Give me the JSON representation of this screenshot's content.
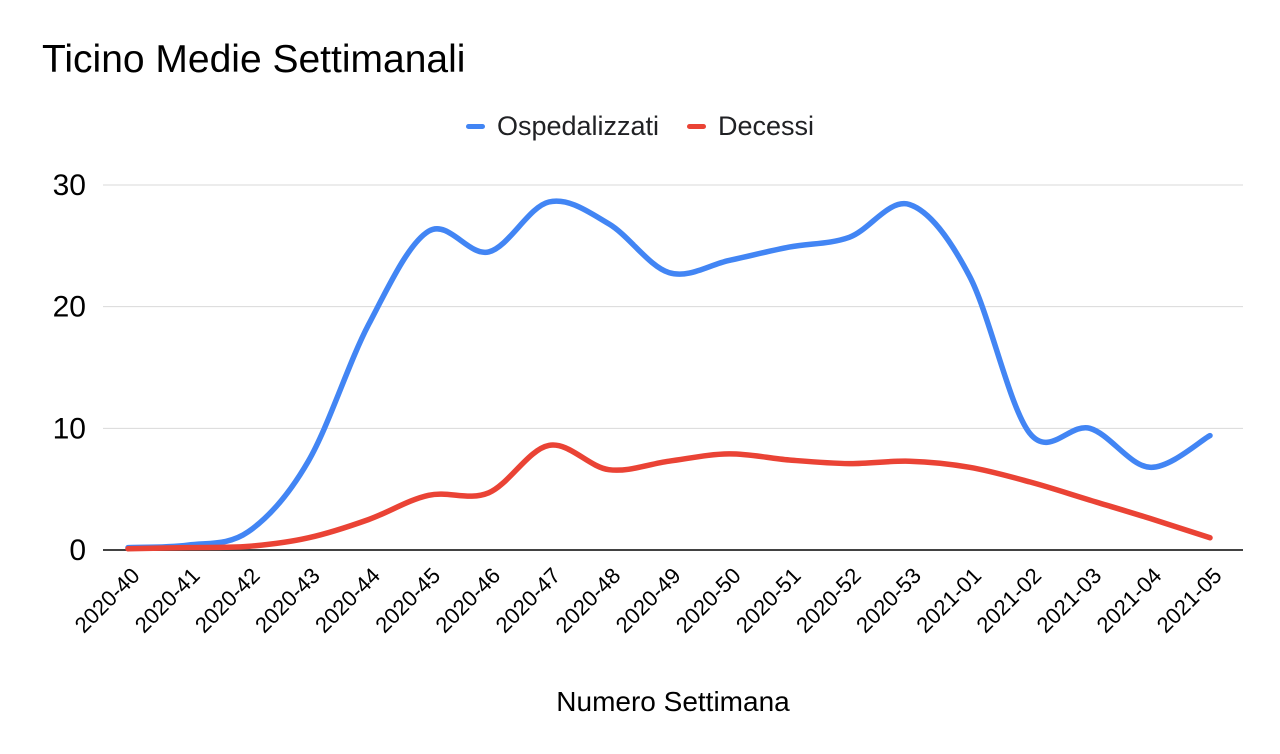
{
  "background": "#ffffff",
  "text_color": "#000000",
  "chart_data": {
    "type": "line",
    "title": "Ticino Medie Settimanali",
    "xlabel": "Numero Settimana",
    "ylabel": "",
    "ylim": [
      0,
      30
    ],
    "yticks": [
      0,
      10,
      20,
      30
    ],
    "grid": true,
    "grid_color": "#d9d9d9",
    "axis_color": "#424242",
    "legend_position": "top",
    "smooth": true,
    "x_tick_rotation_deg": -45,
    "categories": [
      "2020-40",
      "2020-41",
      "2020-42",
      "2020-43",
      "2020-44",
      "2020-45",
      "2020-46",
      "2020-47",
      "2020-48",
      "2020-49",
      "2020-50",
      "2020-51",
      "2020-52",
      "2020-53",
      "2021-01",
      "2021-02",
      "2021-03",
      "2021-04",
      "2021-05"
    ],
    "series": [
      {
        "name": "Ospedalizzati",
        "color": "#4285F4",
        "values": [
          0.2,
          0.4,
          1.5,
          7.3,
          18.5,
          26.2,
          24.5,
          28.6,
          26.8,
          22.8,
          23.8,
          24.9,
          25.7,
          28.4,
          22.5,
          9.6,
          10.0,
          6.8,
          9.4
        ]
      },
      {
        "name": "Decessi",
        "color": "#EA4335",
        "values": [
          0.1,
          0.2,
          0.3,
          1.0,
          2.5,
          4.5,
          4.7,
          8.6,
          6.6,
          7.3,
          7.9,
          7.4,
          7.1,
          7.3,
          6.8,
          5.6,
          4.1,
          2.6,
          1.0
        ]
      }
    ]
  }
}
